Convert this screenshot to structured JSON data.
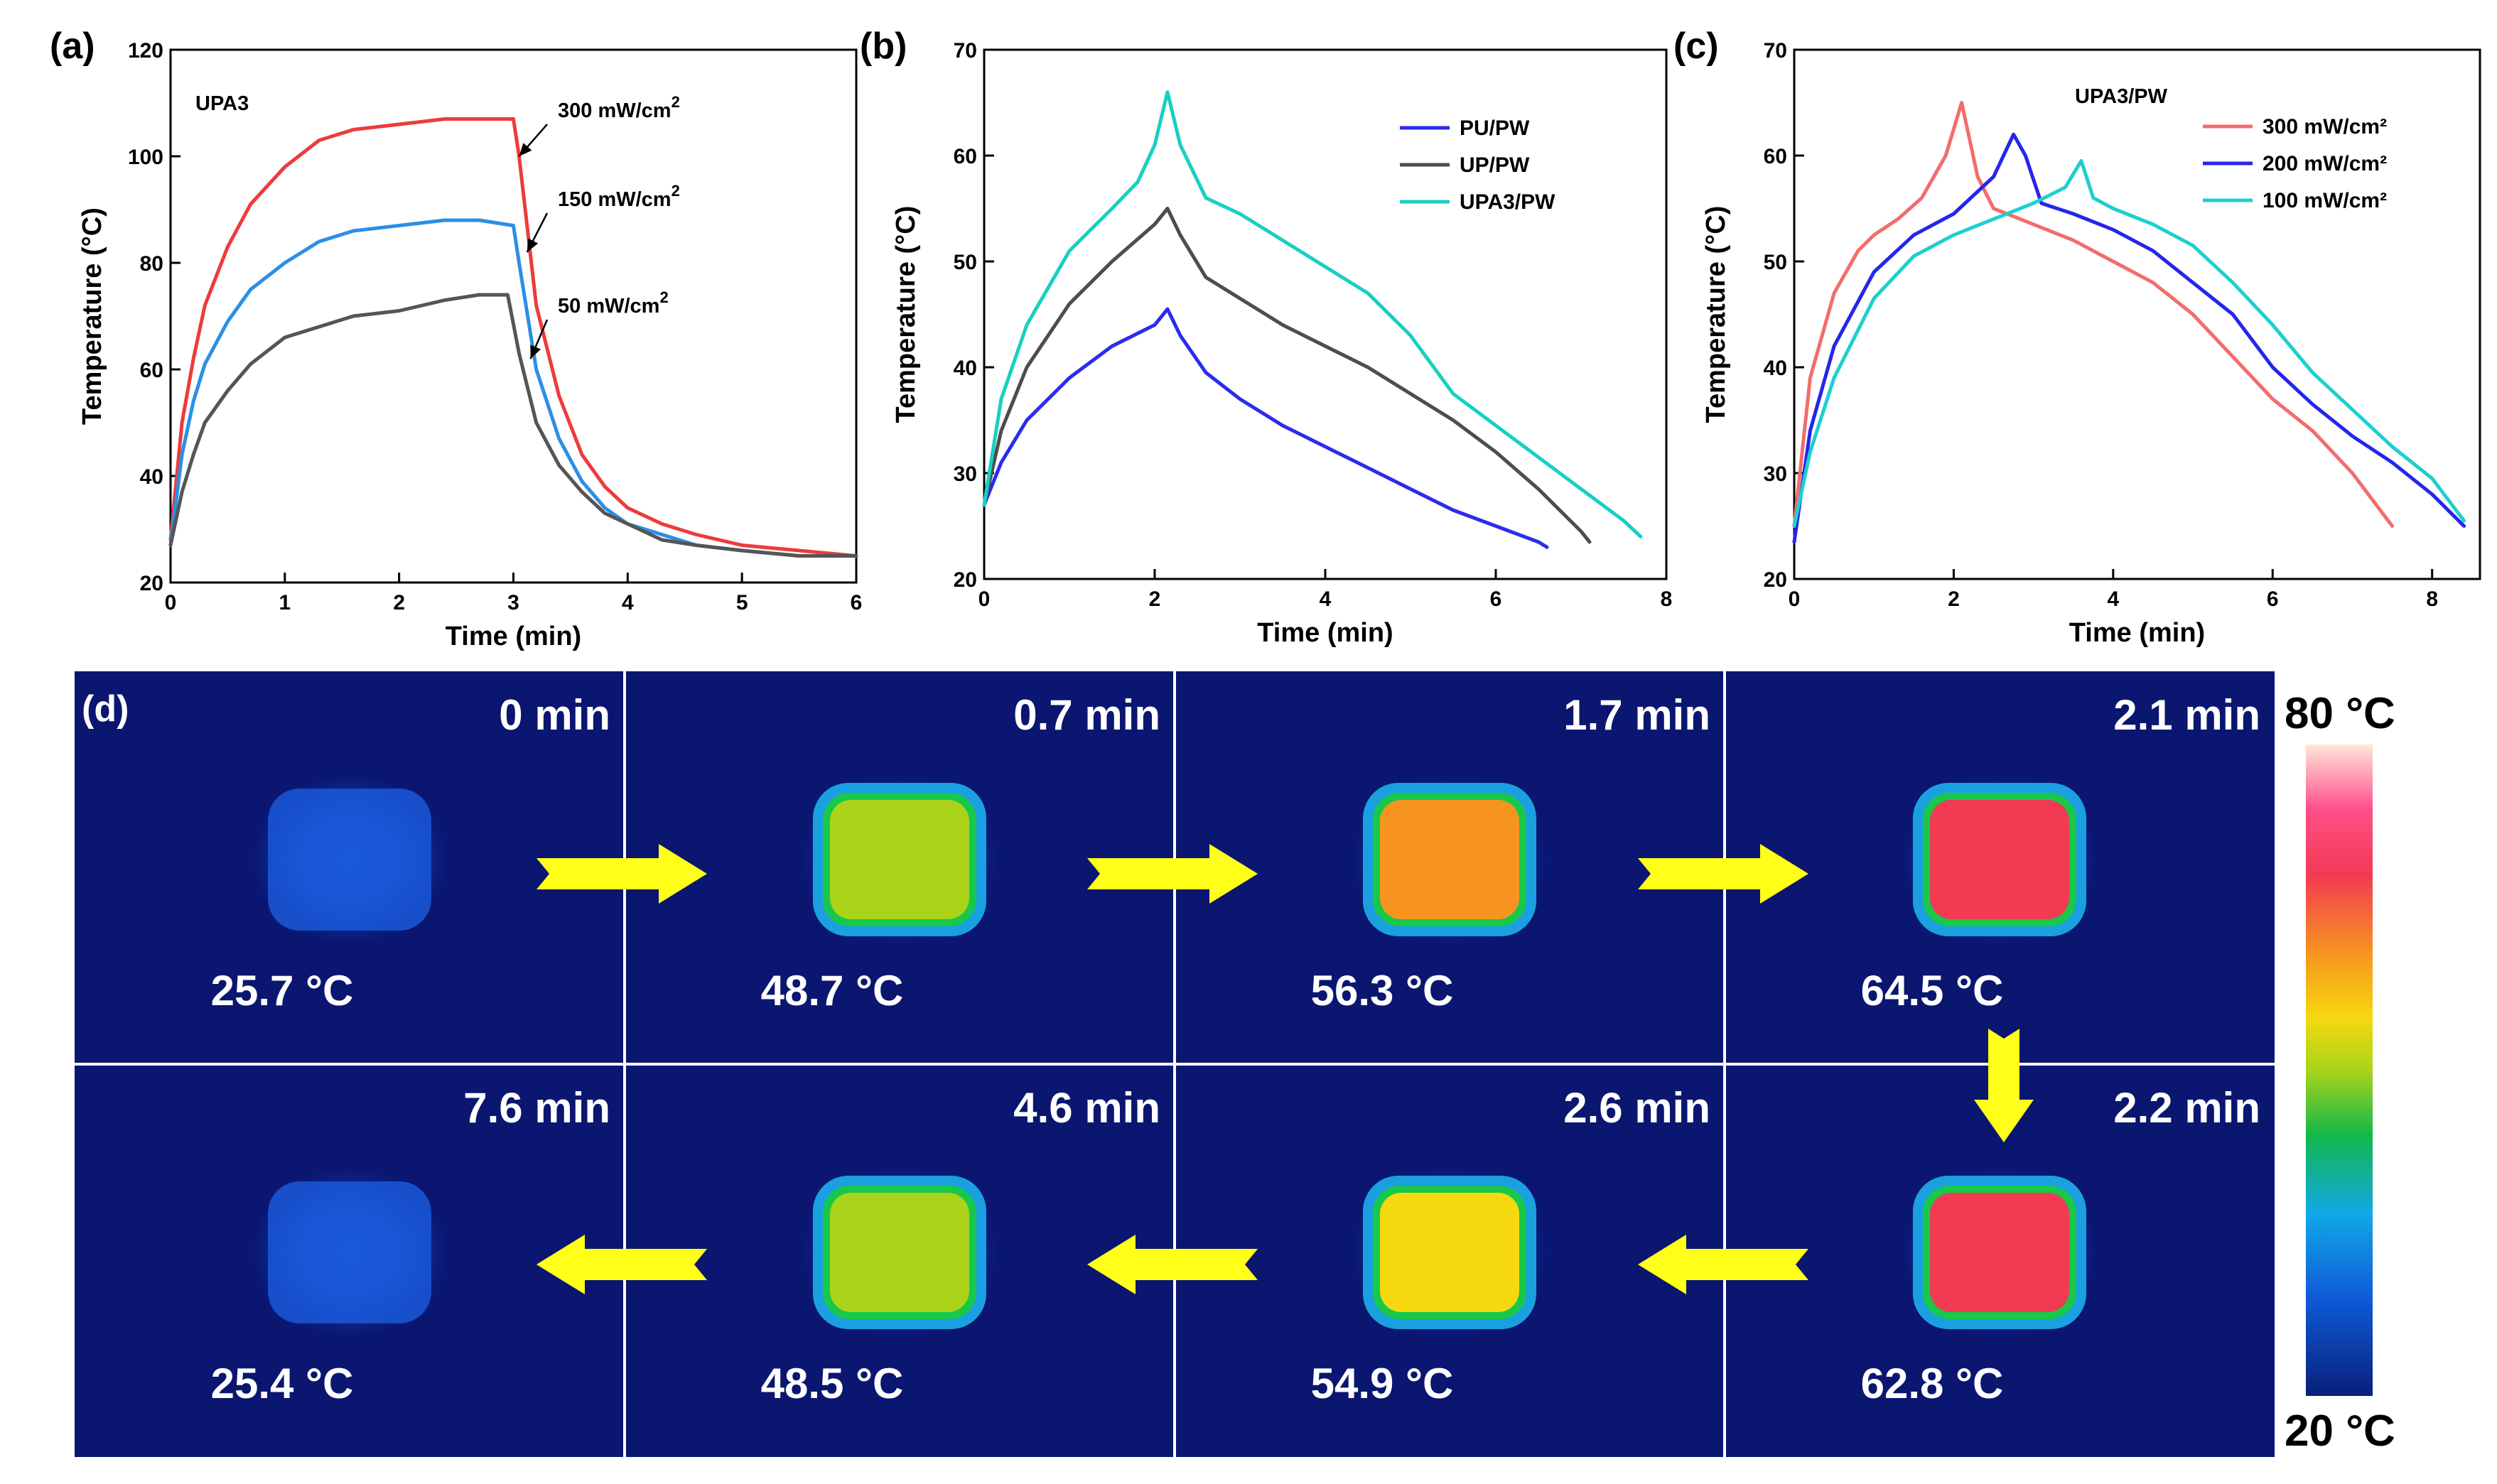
{
  "chart_data": [
    {
      "type": "line",
      "panel": "(a)",
      "inset_label": "UPA3",
      "xlabel": "Time (min)",
      "ylabel": "Temperature (°C)",
      "xlim": [
        0,
        6
      ],
      "ylim": [
        20,
        120
      ],
      "xticks": [
        0,
        1,
        2,
        3,
        4,
        5,
        6
      ],
      "yticks": [
        20,
        40,
        60,
        80,
        100,
        120
      ],
      "series": [
        {
          "name": "300 mW/cm²",
          "color": "#ee3b3b",
          "x": [
            0,
            0.1,
            0.2,
            0.3,
            0.5,
            0.7,
            1.0,
            1.3,
            1.6,
            2.0,
            2.4,
            2.8,
            3.0,
            3.05,
            3.2,
            3.4,
            3.6,
            3.8,
            4.0,
            4.3,
            4.6,
            5.0,
            5.5,
            6.0
          ],
          "y": [
            28,
            50,
            62,
            72,
            83,
            91,
            98,
            103,
            105,
            106,
            107,
            107,
            107,
            100,
            72,
            55,
            44,
            38,
            34,
            31,
            29,
            27,
            26,
            25
          ]
        },
        {
          "name": "150 mW/cm²",
          "color": "#2a8fe6",
          "x": [
            0,
            0.1,
            0.2,
            0.3,
            0.5,
            0.7,
            1.0,
            1.3,
            1.6,
            2.0,
            2.4,
            2.7,
            3.0,
            3.05,
            3.2,
            3.4,
            3.6,
            3.8,
            4.0,
            4.3,
            4.6,
            5.0,
            5.5,
            6.0
          ],
          "y": [
            27,
            44,
            54,
            61,
            69,
            75,
            80,
            84,
            86,
            87,
            88,
            88,
            87,
            80,
            60,
            47,
            39,
            34,
            31,
            29,
            27,
            26,
            25,
            25
          ]
        },
        {
          "name": "50 mW/cm²",
          "color": "#555555",
          "x": [
            0,
            0.1,
            0.2,
            0.3,
            0.5,
            0.7,
            1.0,
            1.3,
            1.6,
            2.0,
            2.4,
            2.7,
            2.95,
            3.05,
            3.2,
            3.4,
            3.6,
            3.8,
            4.0,
            4.3,
            4.6,
            5.0,
            5.5,
            6.0
          ],
          "y": [
            27,
            37,
            44,
            50,
            56,
            61,
            66,
            68,
            70,
            71,
            73,
            74,
            74,
            63,
            50,
            42,
            37,
            33,
            31,
            28,
            27,
            26,
            25,
            25
          ]
        }
      ]
    },
    {
      "type": "line",
      "panel": "(b)",
      "xlabel": "Time (min)",
      "ylabel": "Temperature (°C)",
      "xlim": [
        0,
        8
      ],
      "ylim": [
        20,
        70
      ],
      "xticks": [
        0,
        2,
        4,
        6,
        8
      ],
      "yticks": [
        20,
        30,
        40,
        50,
        60,
        70
      ],
      "legend": "top-right",
      "series": [
        {
          "name": "PU/PW",
          "color": "#2b2bef",
          "x": [
            0,
            0.2,
            0.5,
            1.0,
            1.5,
            2.0,
            2.15,
            2.3,
            2.6,
            3.0,
            3.5,
            4.0,
            4.5,
            5.0,
            5.5,
            6.0,
            6.5,
            6.6
          ],
          "y": [
            27,
            31,
            35,
            39,
            42,
            44,
            45.5,
            43,
            39.5,
            37,
            34.5,
            32.5,
            30.5,
            28.5,
            26.5,
            25,
            23.5,
            23
          ]
        },
        {
          "name": "UP/PW",
          "color": "#4d4d4d",
          "x": [
            0,
            0.2,
            0.5,
            1.0,
            1.5,
            2.0,
            2.15,
            2.3,
            2.6,
            3.0,
            3.5,
            4.0,
            4.5,
            5.0,
            5.5,
            6.0,
            6.5,
            7.0,
            7.1
          ],
          "y": [
            27,
            34,
            40,
            46,
            50,
            53.5,
            55,
            52.5,
            48.5,
            46.5,
            44,
            42,
            40,
            37.5,
            35,
            32,
            28.5,
            24.5,
            23.5
          ]
        },
        {
          "name": "UPA3/PW",
          "color": "#19cfc3",
          "x": [
            0,
            0.2,
            0.5,
            1.0,
            1.5,
            1.8,
            2.0,
            2.15,
            2.3,
            2.6,
            3.0,
            3.5,
            4.0,
            4.5,
            5.0,
            5.5,
            6.0,
            6.5,
            7.0,
            7.5,
            7.7
          ],
          "y": [
            27,
            37,
            44,
            51,
            55,
            57.5,
            61,
            66,
            61,
            56,
            54.5,
            52,
            49.5,
            47,
            43,
            37.5,
            34.5,
            31.5,
            28.5,
            25.5,
            24
          ]
        }
      ]
    },
    {
      "type": "line",
      "panel": "(c)",
      "inset_label": "UPA3/PW",
      "xlabel": "Time (min)",
      "ylabel": "Temperature (°C)",
      "xlim": [
        0,
        8.6
      ],
      "ylim": [
        20,
        70
      ],
      "xticks": [
        0,
        2,
        4,
        6,
        8
      ],
      "yticks": [
        20,
        30,
        40,
        50,
        60,
        70
      ],
      "legend": "top-right",
      "series": [
        {
          "name": "300 mW/cm²",
          "color": "#f26d6d",
          "x": [
            0,
            0.2,
            0.5,
            0.8,
            1.0,
            1.3,
            1.6,
            1.9,
            2.1,
            2.3,
            2.5,
            3.0,
            3.5,
            4.0,
            4.5,
            5.0,
            5.5,
            6.0,
            6.5,
            7.0,
            7.4,
            7.5
          ],
          "y": [
            25,
            39,
            47,
            51,
            52.5,
            54,
            56,
            60,
            65,
            58,
            55,
            53.5,
            52,
            50,
            48,
            45,
            41,
            37,
            34,
            30,
            26,
            25
          ]
        },
        {
          "name": "200 mW/cm²",
          "color": "#2525ec",
          "x": [
            0,
            0.2,
            0.5,
            1.0,
            1.5,
            2.0,
            2.5,
            2.75,
            2.9,
            3.1,
            3.5,
            4.0,
            4.5,
            5.0,
            5.5,
            6.0,
            6.5,
            7.0,
            7.5,
            8.0,
            8.4
          ],
          "y": [
            23.5,
            34,
            42,
            49,
            52.5,
            54.5,
            58,
            62,
            60,
            55.5,
            54.5,
            53,
            51,
            48,
            45,
            40,
            36.5,
            33.5,
            31,
            28,
            25
          ]
        },
        {
          "name": "100 mW/cm²",
          "color": "#1ecfcf",
          "x": [
            0,
            0.2,
            0.5,
            1.0,
            1.5,
            2.0,
            2.5,
            3.0,
            3.4,
            3.6,
            3.75,
            4.0,
            4.5,
            5.0,
            5.5,
            6.0,
            6.5,
            7.0,
            7.5,
            8.0,
            8.4
          ],
          "y": [
            25,
            32,
            39,
            46.5,
            50.5,
            52.5,
            54,
            55.5,
            57,
            59.5,
            56,
            55,
            53.5,
            51.5,
            48,
            44,
            39.5,
            36,
            32.5,
            29.5,
            25.5
          ]
        }
      ]
    },
    {
      "type": "heatmap",
      "panel": "(d)",
      "colorbar": {
        "max_label": "80 °C",
        "min_label": "20 °C",
        "min": 20,
        "max": 80
      },
      "frames": [
        {
          "time": "0 min",
          "temp": "25.7 °C",
          "value": 25.7
        },
        {
          "time": "0.7 min",
          "temp": "48.7 °C",
          "value": 48.7
        },
        {
          "time": "1.7 min",
          "temp": "56.3 °C",
          "value": 56.3
        },
        {
          "time": "2.1 min",
          "temp": "64.5 °C",
          "value": 64.5
        },
        {
          "time": "7.6 min",
          "temp": "25.4 °C",
          "value": 25.4
        },
        {
          "time": "4.6 min",
          "temp": "48.5 °C",
          "value": 48.5
        },
        {
          "time": "2.6 min",
          "temp": "54.9 °C",
          "value": 54.9
        },
        {
          "time": "2.2 min",
          "temp": "62.8 °C",
          "value": 62.8
        }
      ]
    }
  ],
  "panel_a": {
    "annotations": [
      {
        "label": "300 mW/cm",
        "sup": "2",
        "ax": 3.1,
        "ay": 114,
        "tx": 3.05,
        "ty": 100
      },
      {
        "label": "150 mW/cm",
        "sup": "2",
        "ax": 3.1,
        "ay": 96,
        "tx": 3.12,
        "ty": 82
      },
      {
        "label": "50 mW/cm",
        "sup": "2",
        "ax": 3.15,
        "ay": 78,
        "tx": 3.15,
        "ty": 62
      }
    ]
  }
}
